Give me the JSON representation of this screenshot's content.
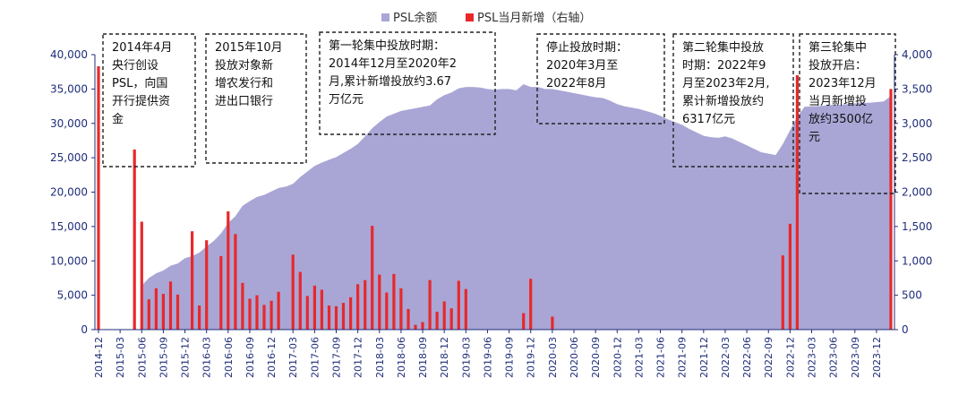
{
  "chart_data": {
    "type": "area+bar",
    "legend": {
      "placement": "top-center",
      "items": [
        {
          "label": "PSL余额",
          "color": "#a9a6d6"
        },
        {
          "label": "PSL当月新增（右轴）",
          "color": "#e8282b"
        }
      ]
    },
    "y_left": {
      "min": 0,
      "max": 40000,
      "ticks": [
        "0",
        "5,000",
        "10,000",
        "15,000",
        "20,000",
        "25,000",
        "30,000",
        "35,000",
        "40,000"
      ]
    },
    "y_right": {
      "min": 0,
      "max": 4000,
      "ticks": [
        "0",
        "500",
        "1,000",
        "1,500",
        "2,000",
        "2,500",
        "3,000",
        "3,500",
        "4,000"
      ]
    },
    "x_start": "2014-12",
    "x_end": "2023-12",
    "x_tick_labels": [
      "2014-12",
      "2015-03",
      "2015-06",
      "2015-09",
      "2015-12",
      "2016-03",
      "2016-06",
      "2016-09",
      "2016-12",
      "2017-03",
      "2017-06",
      "2017-09",
      "2017-12",
      "2018-03",
      "2018-06",
      "2018-09",
      "2018-12",
      "2019-03",
      "2019-06",
      "2019-09",
      "2019-12",
      "2020-03",
      "2020-06",
      "2020-09",
      "2020-12",
      "2021-03",
      "2021-06",
      "2021-09",
      "2021-12",
      "2022-03",
      "2022-06",
      "2022-09",
      "2022-12",
      "2023-03",
      "2023-06",
      "2023-09",
      "2023-12"
    ],
    "balance": {
      "name": "PSL余额",
      "values": [
        null,
        null,
        null,
        null,
        null,
        null,
        6400,
        7500,
        8200,
        8600,
        9300,
        9600,
        10400,
        10700,
        11200,
        12100,
        12900,
        14000,
        15500,
        16500,
        18000,
        18700,
        19300,
        19600,
        20100,
        20600,
        20800,
        21200,
        22200,
        23000,
        23800,
        24300,
        24700,
        25100,
        25700,
        26300,
        27000,
        28100,
        29300,
        30200,
        31000,
        31400,
        31800,
        32000,
        32200,
        32400,
        32600,
        33500,
        34100,
        34500,
        35100,
        35300,
        35300,
        35200,
        35000,
        34900,
        35000,
        35000,
        34800,
        35700,
        35300,
        35300,
        35000,
        35000,
        34800,
        34600,
        34400,
        34200,
        34000,
        33800,
        33700,
        33300,
        32800,
        32500,
        32300,
        32100,
        31800,
        31500,
        31100,
        30600,
        30200,
        29800,
        29200,
        28700,
        28200,
        28000,
        27900,
        28100,
        27800,
        27300,
        26800,
        26300,
        25800,
        25600,
        25400,
        27000,
        29000,
        31000,
        32400,
        32500,
        32500,
        32600,
        32700,
        32700,
        32800,
        32900,
        33000,
        33000,
        33100,
        33200,
        34000
      ]
    },
    "monthly_new": {
      "name": "PSL当月新增（右轴）",
      "values": [
        3830,
        0,
        0,
        0,
        0,
        2620,
        1570,
        440,
        600,
        520,
        700,
        510,
        0,
        1430,
        350,
        1300,
        0,
        1070,
        1720,
        1390,
        680,
        450,
        500,
        360,
        420,
        550,
        0,
        1090,
        840,
        490,
        640,
        580,
        350,
        340,
        390,
        470,
        660,
        720,
        1510,
        800,
        540,
        810,
        600,
        300,
        70,
        110,
        720,
        260,
        410,
        310,
        710,
        590,
        0,
        0,
        0,
        0,
        0,
        0,
        0,
        240,
        740,
        0,
        0,
        190,
        0,
        0,
        0,
        0,
        0,
        0,
        0,
        0,
        0,
        0,
        0,
        0,
        0,
        0,
        0,
        0,
        0,
        0,
        0,
        0,
        0,
        0,
        0,
        0,
        0,
        0,
        0,
        0,
        0,
        0,
        0,
        1080,
        1540,
        3700,
        0,
        0,
        0,
        0,
        0,
        0,
        0,
        0,
        0,
        0,
        0,
        0,
        3500
      ]
    },
    "annotations": [
      {
        "text": "2014年4月\n央行创设\nPSL，向国\n开行提供资\n金"
      },
      {
        "text": "2015年10月\n投放对象新\n增农发行和\n进出口银行"
      },
      {
        "text": "第一轮集中投放时期：\n2014年12月至2020年2\n月,累计新增投放约3.67\n万亿元"
      },
      {
        "text": "停止投放时期：\n2020年3月至\n2022年8月"
      },
      {
        "text": "第二轮集中投放\n时期：2022年9\n月至2023年2月,\n累计新增投放约\n6317亿元"
      },
      {
        "text": "第三轮集中\n投放开启：\n2023年12月\n当月新增投\n放约3500亿\n元"
      }
    ]
  }
}
